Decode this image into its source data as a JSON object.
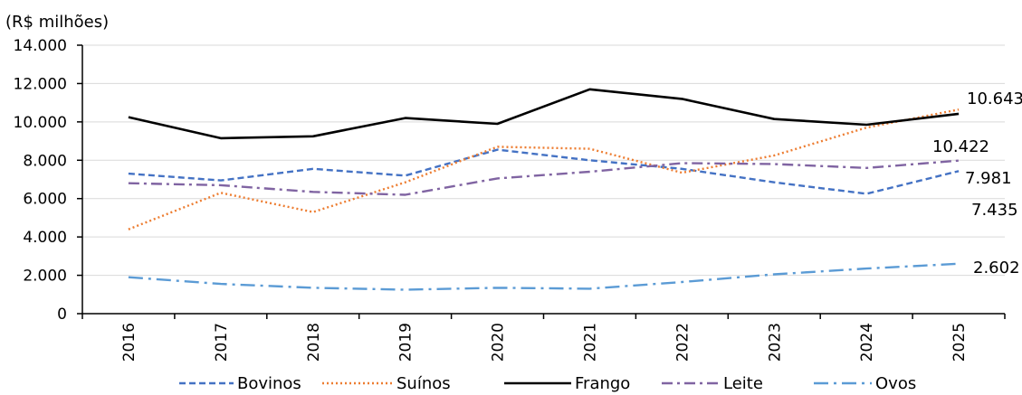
{
  "chart_data": {
    "type": "line",
    "unit_label": "(R$ milhões)",
    "categories": [
      "2016",
      "2017",
      "2018",
      "2019",
      "2020",
      "2021",
      "2022",
      "2023",
      "2024",
      "2025"
    ],
    "ylim": [
      0,
      14000
    ],
    "y_ticks": [
      0,
      2000,
      4000,
      6000,
      8000,
      10000,
      12000,
      14000
    ],
    "y_tick_labels": [
      "0",
      "2.000",
      "4.000",
      "6.000",
      "8.000",
      "10.000",
      "12.000",
      "14.000"
    ],
    "grid": "horizontal",
    "legend_position": "bottom",
    "series": [
      {
        "name": "Bovinos",
        "color": "#4472c4",
        "dash": "dashed",
        "values": [
          7300,
          6950,
          7550,
          7200,
          8550,
          8000,
          7550,
          6850,
          6250,
          7435
        ]
      },
      {
        "name": "Suínos",
        "color": "#ed7d31",
        "dash": "dotted",
        "values": [
          4400,
          6300,
          5300,
          6850,
          8700,
          8600,
          7350,
          8250,
          9700,
          10643
        ]
      },
      {
        "name": "Frango",
        "color": "#000000",
        "dash": "solid",
        "values": [
          10250,
          9150,
          9250,
          10200,
          9900,
          11700,
          11200,
          10150,
          9850,
          10422
        ]
      },
      {
        "name": "Leite",
        "color": "#8064a2",
        "dash": "dashdot",
        "values": [
          6800,
          6700,
          6350,
          6200,
          7050,
          7400,
          7850,
          7800,
          7600,
          7981
        ]
      },
      {
        "name": "Ovos",
        "color": "#5b9bd5",
        "dash": "longdashdot",
        "values": [
          1900,
          1550,
          1350,
          1250,
          1350,
          1300,
          1650,
          2050,
          2350,
          2602
        ]
      }
    ],
    "end_labels": [
      {
        "series": "Suínos",
        "text": "10.643"
      },
      {
        "series": "Frango",
        "text": "10.422"
      },
      {
        "series": "Leite",
        "text": "7.981"
      },
      {
        "series": "Bovinos",
        "text": "7.435"
      },
      {
        "series": "Ovos",
        "text": "2.602"
      }
    ]
  }
}
